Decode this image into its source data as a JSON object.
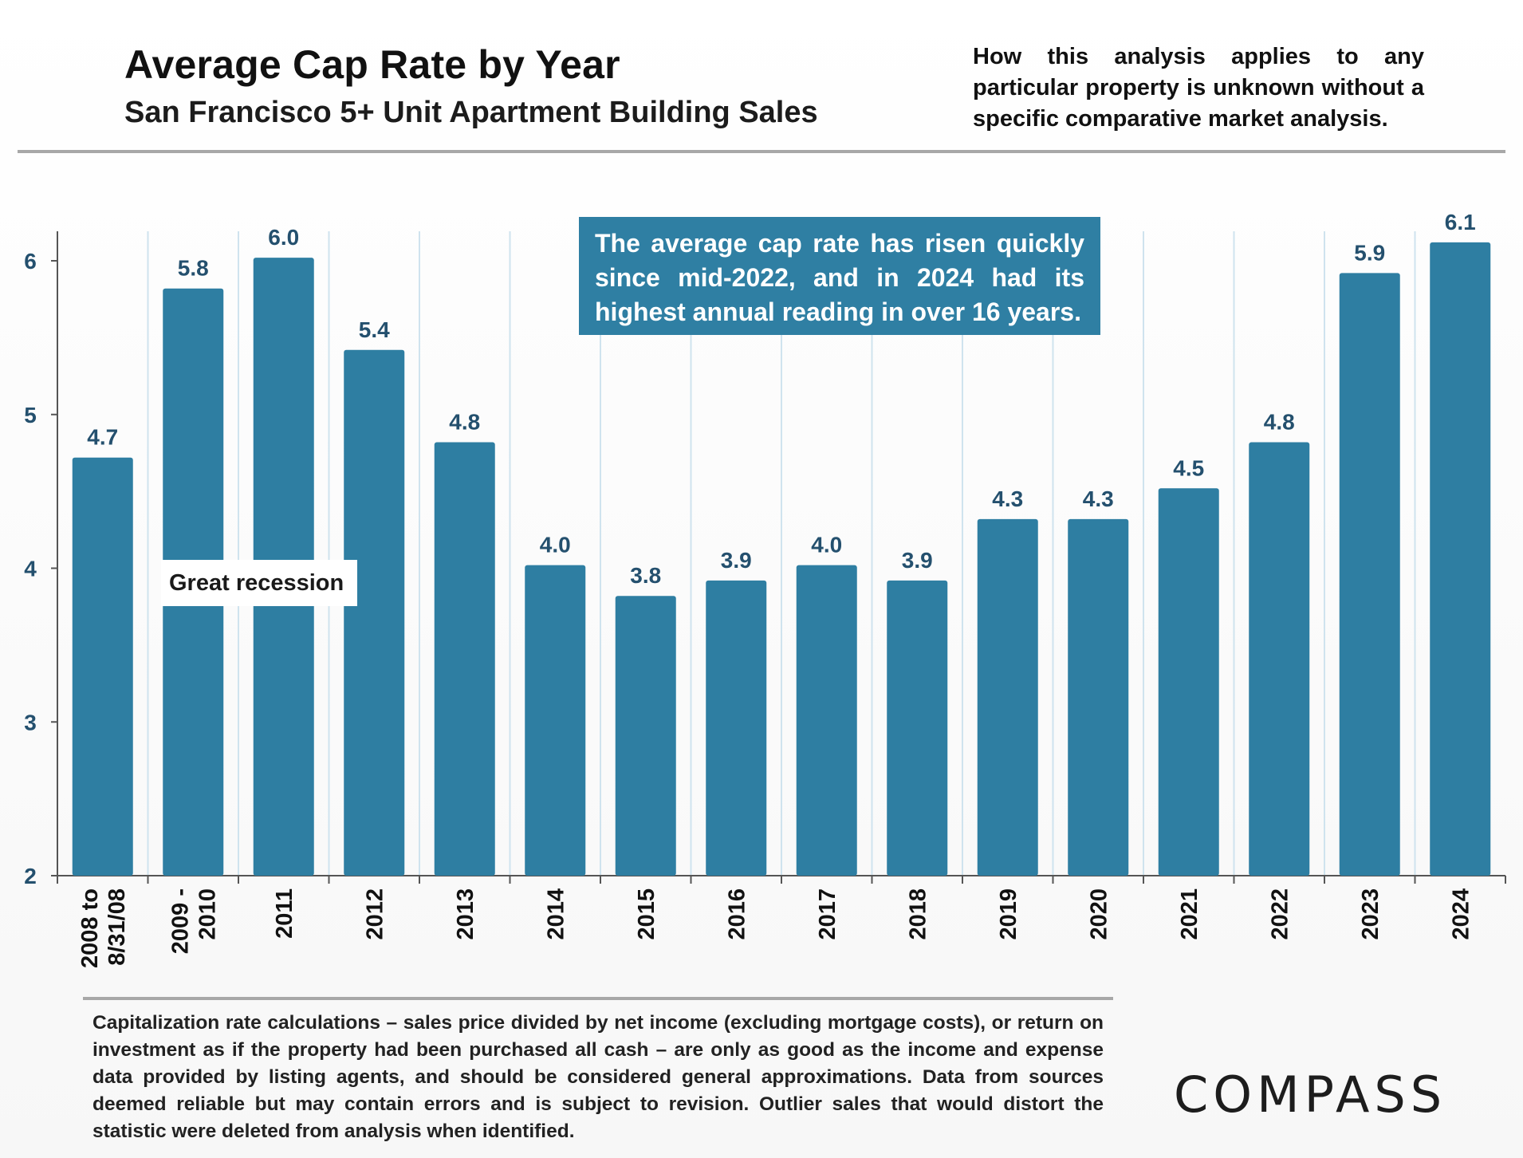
{
  "header": {
    "title": "Average Cap Rate by Year",
    "subtitle": "San Francisco 5+ Unit Apartment Building Sales",
    "disclaimer": "How this analysis applies to any particular property is unknown without a specific comparative market analysis."
  },
  "annotations": {
    "callout": "The average cap rate has risen quickly since mid-2022, and in 2024 had its highest annual reading in over 16 years.",
    "recession_label": "Great recession"
  },
  "footnote": "Capitalization rate calculations – sales price divided by net income (excluding mortgage costs), or return on investment as if the property had been purchased all cash – are only as good as the income and expense data provided by listing agents, and should be considered general approximations. Data from sources deemed reliable but may contain errors and is subject to revision. Outlier sales that would distort the statistic were deleted from analysis when identified.",
  "logo": "COMPASS",
  "colors": {
    "bar": "#2e7ea2",
    "label": "#24506e",
    "callout_bg": "#2f7fa3",
    "gridline": "#cfe3ee"
  },
  "chart_data": {
    "type": "bar",
    "title": "Average Cap Rate by Year",
    "subtitle": "San Francisco 5+ Unit Apartment Building Sales",
    "categories": [
      [
        "2008 to",
        "8/31/08"
      ],
      [
        "2009 -",
        "2010"
      ],
      [
        "2011"
      ],
      [
        "2012"
      ],
      [
        "2013"
      ],
      [
        "2014"
      ],
      [
        "2015"
      ],
      [
        "2016"
      ],
      [
        "2017"
      ],
      [
        "2018"
      ],
      [
        "2019"
      ],
      [
        "2020"
      ],
      [
        "2021"
      ],
      [
        "2022"
      ],
      [
        "2023"
      ],
      [
        "2024"
      ]
    ],
    "values": [
      4.72,
      5.82,
      6.02,
      5.42,
      4.82,
      4.02,
      3.82,
      3.92,
      4.02,
      3.92,
      4.32,
      4.32,
      4.52,
      4.82,
      5.92,
      6.12
    ],
    "data_labels": [
      "4.7",
      "5.8",
      "6.0",
      "5.4",
      "4.8",
      "4.0",
      "3.8",
      "3.9",
      "4.0",
      "3.9",
      "4.3",
      "4.3",
      "4.5",
      "4.8",
      "5.9",
      "6.1"
    ],
    "ylim": [
      2,
      6.2
    ],
    "yticks": [
      2,
      3,
      4,
      5,
      6
    ],
    "xlabel": "",
    "ylabel": ""
  }
}
